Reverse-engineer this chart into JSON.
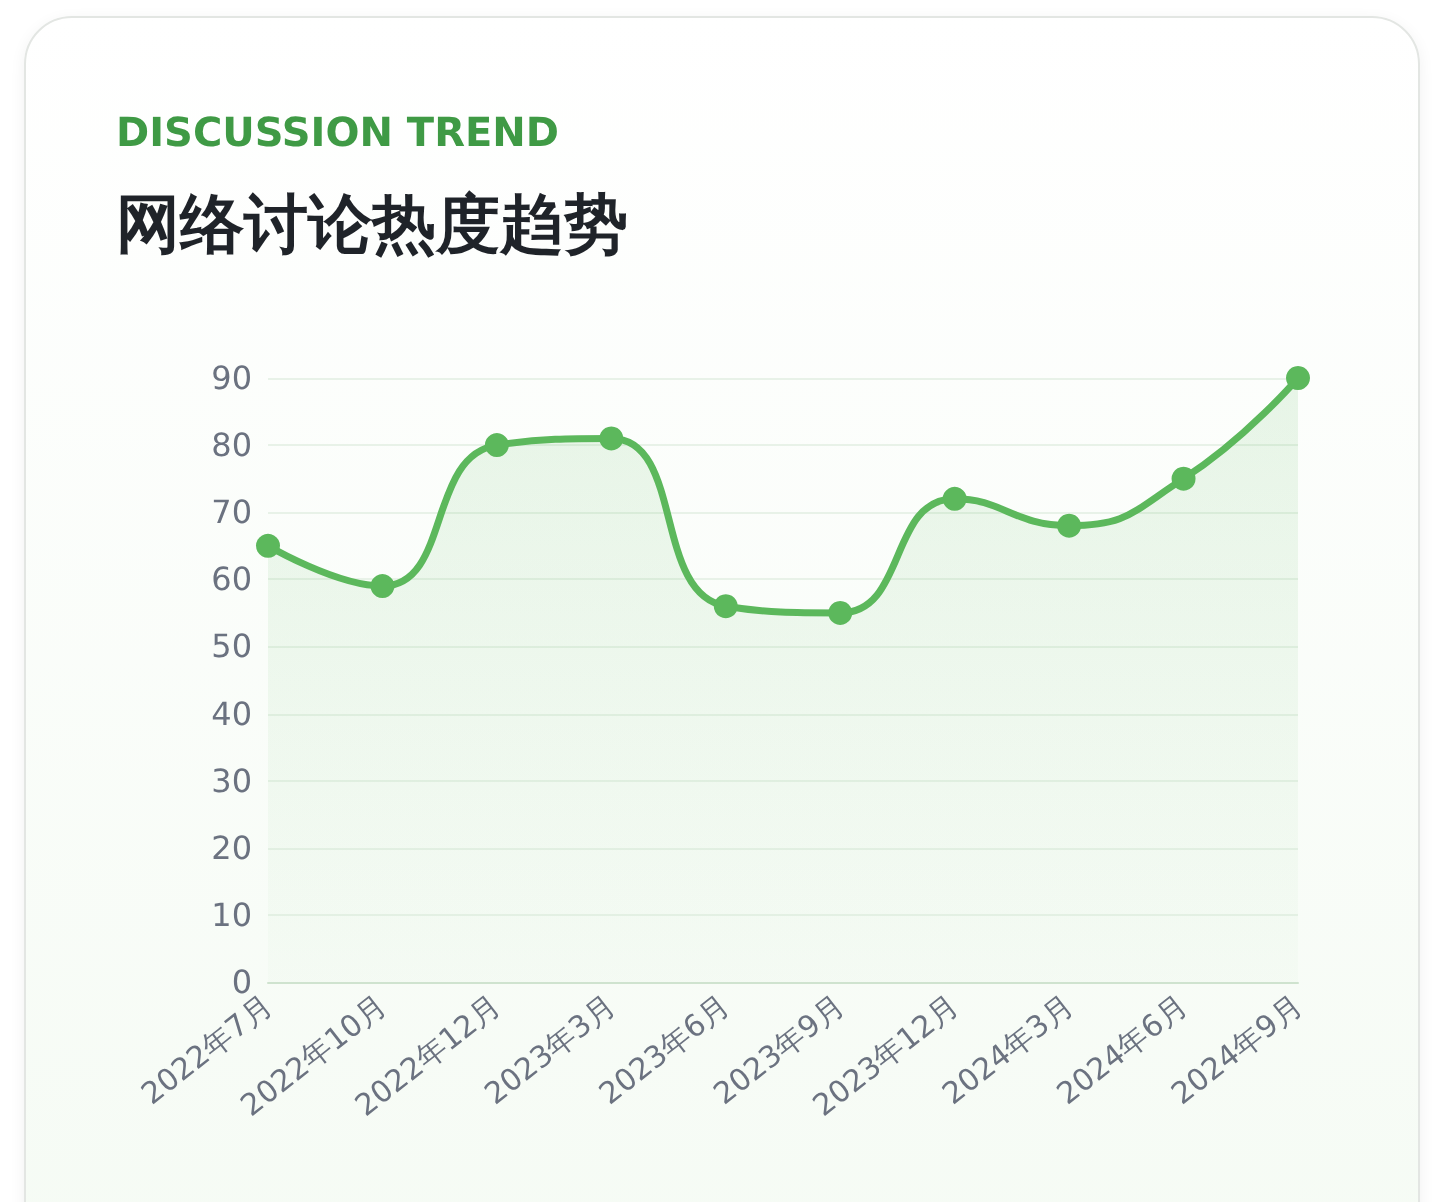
{
  "chart_data": {
    "type": "area",
    "subtitle": "DISCUSSION TREND",
    "title": "网络讨论热度趋势",
    "categories": [
      "2022年7月",
      "2022年10月",
      "2022年12月",
      "2023年3月",
      "2023年6月",
      "2023年9月",
      "2023年12月",
      "2024年3月",
      "2024年6月",
      "2024年9月"
    ],
    "series": [
      {
        "color": "#5cb85c",
        "values": [
          65,
          59,
          80,
          81,
          56,
          55,
          72,
          68,
          75,
          90
        ]
      }
    ],
    "ylim": [
      0,
      90
    ],
    "yticks": [
      0,
      10,
      20,
      30,
      40,
      50,
      60,
      70,
      80,
      90
    ],
    "grid": "y",
    "marker": "circle",
    "line_style": "solid"
  }
}
